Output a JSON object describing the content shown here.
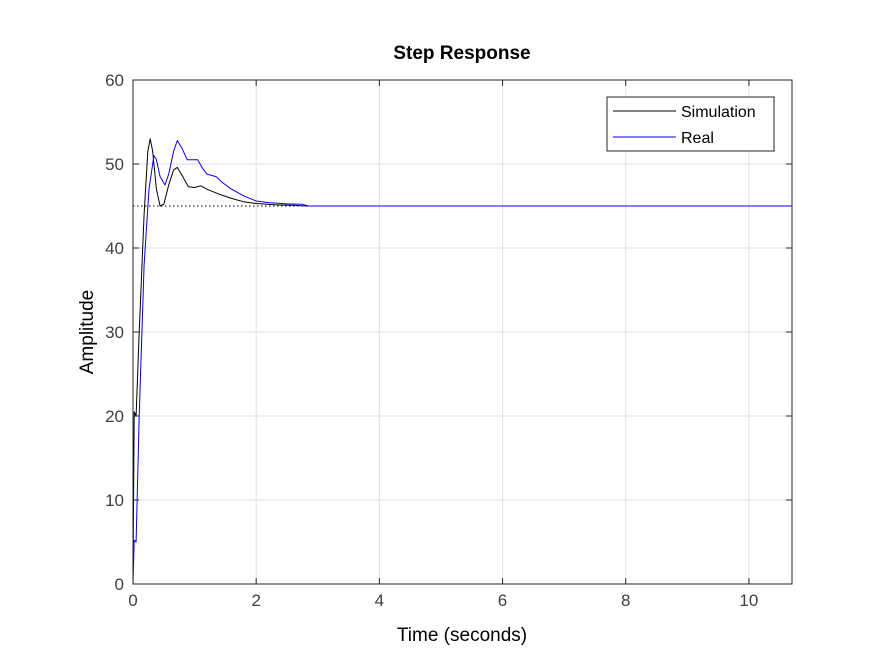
{
  "chart_data": {
    "type": "line",
    "title": "Step Response",
    "xlabel": "Time (seconds)",
    "ylabel": "Amplitude",
    "xlim": [
      0,
      10.7
    ],
    "ylim": [
      0,
      60
    ],
    "xticks": [
      0,
      2,
      4,
      6,
      8,
      10
    ],
    "yticks": [
      0,
      10,
      20,
      30,
      40,
      50,
      60
    ],
    "grid": true,
    "legend_location": "top-right",
    "steady_state": 45,
    "series": [
      {
        "name": "Simulation",
        "color": "#000000",
        "points": [
          [
            0,
            0
          ],
          [
            0.02,
            20.5
          ],
          [
            0.05,
            20.0
          ],
          [
            0.1,
            30.0
          ],
          [
            0.18,
            44.0
          ],
          [
            0.24,
            51.5
          ],
          [
            0.28,
            53.0
          ],
          [
            0.32,
            51.5
          ],
          [
            0.38,
            47.0
          ],
          [
            0.44,
            45.0
          ],
          [
            0.5,
            45.2
          ],
          [
            0.58,
            47.5
          ],
          [
            0.66,
            49.3
          ],
          [
            0.72,
            49.6
          ],
          [
            0.8,
            48.6
          ],
          [
            0.9,
            47.3
          ],
          [
            1.0,
            47.2
          ],
          [
            1.1,
            47.4
          ],
          [
            1.2,
            47.0
          ],
          [
            1.4,
            46.4
          ],
          [
            1.6,
            45.9
          ],
          [
            1.8,
            45.5
          ],
          [
            2.0,
            45.3
          ],
          [
            2.3,
            45.15
          ],
          [
            2.6,
            45.1
          ],
          [
            2.8,
            45.0
          ],
          [
            3.0,
            45.0
          ],
          [
            10.7,
            45.0
          ]
        ]
      },
      {
        "name": "Real",
        "color": "#0000ff",
        "points": [
          [
            0,
            0
          ],
          [
            0.02,
            5.2
          ],
          [
            0.05,
            5.0
          ],
          [
            0.1,
            20.0
          ],
          [
            0.18,
            38.0
          ],
          [
            0.26,
            47.0
          ],
          [
            0.34,
            51.0
          ],
          [
            0.38,
            50.5
          ],
          [
            0.44,
            48.5
          ],
          [
            0.52,
            47.5
          ],
          [
            0.58,
            48.8
          ],
          [
            0.66,
            51.5
          ],
          [
            0.72,
            52.8
          ],
          [
            0.8,
            51.8
          ],
          [
            0.88,
            50.5
          ],
          [
            0.95,
            50.5
          ],
          [
            1.05,
            50.5
          ],
          [
            1.12,
            49.6
          ],
          [
            1.2,
            48.8
          ],
          [
            1.35,
            48.5
          ],
          [
            1.45,
            47.8
          ],
          [
            1.6,
            47.0
          ],
          [
            1.8,
            46.2
          ],
          [
            2.0,
            45.6
          ],
          [
            2.2,
            45.4
          ],
          [
            2.5,
            45.25
          ],
          [
            2.75,
            45.2
          ],
          [
            2.85,
            45.0
          ],
          [
            3.0,
            45.0
          ],
          [
            10.7,
            45.0
          ]
        ]
      }
    ]
  }
}
